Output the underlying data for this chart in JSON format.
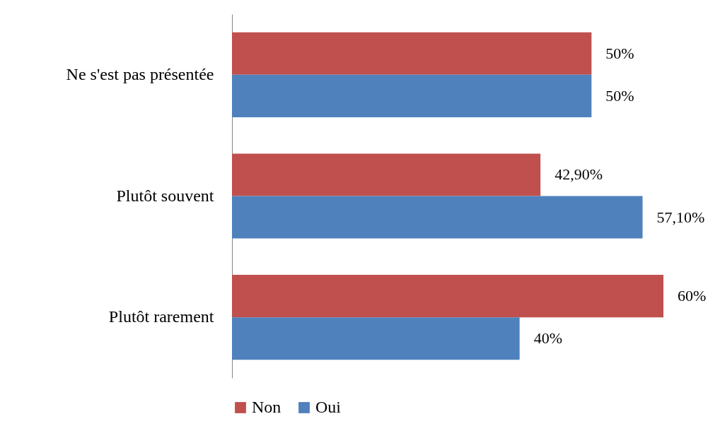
{
  "chart_data": {
    "type": "bar",
    "orientation": "horizontal",
    "categories": [
      "Ne s'est pas présentée",
      "Plutôt souvent",
      "Plutôt rarement"
    ],
    "series": [
      {
        "name": "Non",
        "color": "#c0504d",
        "values": [
          50,
          42.9,
          60
        ],
        "value_labels": [
          "50%",
          "42,90%",
          "60%"
        ]
      },
      {
        "name": "Oui",
        "color": "#4f81bd",
        "values": [
          50,
          57.1,
          40
        ],
        "value_labels": [
          "50%",
          "57,10%",
          "40%"
        ]
      }
    ],
    "legend": "bottom"
  }
}
